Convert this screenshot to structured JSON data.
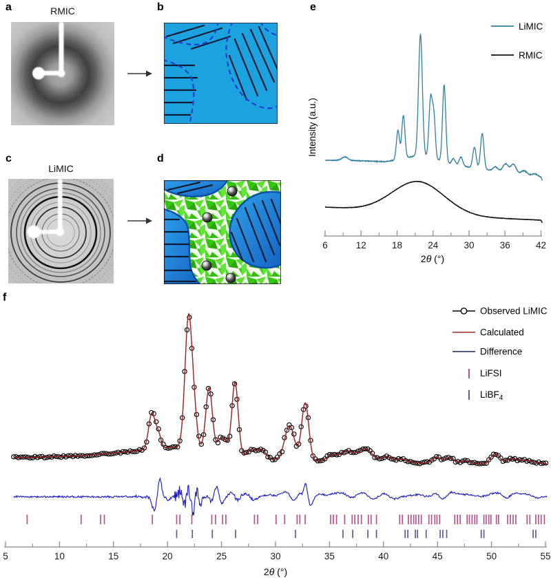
{
  "figure": {
    "panels": {
      "a": {
        "label": "a",
        "title": "RMIC"
      },
      "b": {
        "label": "b"
      },
      "c": {
        "label": "c",
        "title": "LiMIC"
      },
      "d": {
        "label": "d"
      },
      "e": {
        "label": "e"
      },
      "f": {
        "label": "f"
      }
    }
  },
  "colors": {
    "limic": "#2e7f9f",
    "rmic": "#111111",
    "observed": "#000000",
    "calculated": "#9e2424",
    "difference": "#1717c4",
    "difference_legend": "#3c4066",
    "lifsi": "#b5538f",
    "libf4": "#5c5c8f",
    "axis": "#999999",
    "matrix_blue": "#1da2e0",
    "dashed_blue": "#1f3fd0",
    "hatch_navy": "#0d1b35",
    "crystal_green": "#3ecb12",
    "region_blue_dark": "#1565c4"
  },
  "chart_data": [
    {
      "panel": "e",
      "type": "line",
      "xlabel_prefix": "2",
      "xlabel_theta": "θ",
      "xlabel_suffix": " (°)",
      "ylabel": "Intensity (a.u.)",
      "xlim": [
        6,
        42.2
      ],
      "x_major_ticks": [
        6,
        12,
        18,
        24,
        30,
        36,
        42
      ],
      "x_minor_ticks": [
        9,
        15,
        21,
        27,
        33,
        39
      ],
      "legend": [
        {
          "label": "LiMIC",
          "color": "#2e7f9f"
        },
        {
          "label": "RMIC",
          "color": "#111111"
        }
      ],
      "series": [
        {
          "name": "LiMIC",
          "color": "#2e7f9f",
          "baseline": [
            [
              6,
              233
            ],
            [
              9,
              233
            ],
            [
              13,
              234
            ],
            [
              16,
              235
            ],
            [
              17.5,
              233
            ],
            [
              19,
              230
            ],
            [
              21,
              227
            ],
            [
              23,
              229
            ],
            [
              25,
              233
            ],
            [
              27,
              239
            ],
            [
              30,
              243
            ],
            [
              33,
              247
            ],
            [
              36,
              250
            ],
            [
              39,
              254
            ],
            [
              42,
              258
            ],
            [
              42.2,
              262
            ]
          ],
          "peaks": [
            [
              9.3,
              5,
              0.5
            ],
            [
              18.15,
              42,
              0.26
            ],
            [
              19.05,
              62,
              0.26
            ],
            [
              21.9,
              178,
              0.32
            ],
            [
              23.6,
              88,
              0.28
            ],
            [
              24.15,
              58,
              0.24
            ],
            [
              25.85,
              112,
              0.27
            ],
            [
              27.4,
              9,
              0.3
            ],
            [
              28.65,
              13,
              0.3
            ],
            [
              30.9,
              30,
              0.28
            ],
            [
              32.2,
              52,
              0.28
            ],
            [
              34.4,
              6,
              0.4
            ],
            [
              36.1,
              12,
              0.45
            ],
            [
              37.4,
              13,
              0.45
            ],
            [
              39.2,
              6,
              0.5
            ],
            [
              41.0,
              4,
              0.5
            ]
          ]
        },
        {
          "name": "RMIC",
          "color": "#111111",
          "baseline": [
            [
              6,
              301
            ],
            [
              12,
              304
            ],
            [
              22,
              309
            ],
            [
              32,
              316
            ],
            [
              42,
              320
            ],
            [
              42.2,
              324
            ]
          ],
          "peaks": [
            [
              21.5,
              45,
              4.3
            ]
          ]
        }
      ]
    },
    {
      "panel": "f",
      "type": "line+scatter",
      "xlabel_prefix": "2",
      "xlabel_theta": "θ",
      "xlabel_suffix": " (°)",
      "xlim": [
        5,
        55
      ],
      "x_major_ticks": [
        5,
        10,
        15,
        20,
        25,
        30,
        35,
        40,
        45,
        50,
        55
      ],
      "x_minor_ticks": [
        7.5,
        12.5,
        17.5,
        22.5,
        27.5,
        32.5,
        37.5,
        42.5,
        47.5,
        52.5
      ],
      "legend": [
        {
          "label": "Observed LiMIC",
          "type": "line+circle",
          "color": "#000000"
        },
        {
          "label": "Calculated",
          "type": "line",
          "color": "#9e2424"
        },
        {
          "label": "Difference",
          "type": "line",
          "color": "#3c4066"
        },
        {
          "label": "LiFSI",
          "type": "tick",
          "color": "#b5538f"
        },
        {
          "label": "LiBF",
          "sub": "4",
          "type": "tick",
          "color": "#5c5c8f"
        }
      ],
      "series": {
        "observed": {
          "marker": "circle",
          "color": "#000000",
          "step": 0.22
        },
        "calculated": {
          "color": "#9e2424",
          "baseline": [
            [
              5,
              237
            ],
            [
              8,
              236.5
            ],
            [
              12,
              234.5
            ],
            [
              16,
              229
            ],
            [
              18,
              226
            ],
            [
              20,
              222.5
            ],
            [
              22,
              222
            ],
            [
              24,
              226
            ],
            [
              26,
              231
            ],
            [
              28,
              237
            ],
            [
              30,
              240
            ],
            [
              33,
              242
            ],
            [
              36,
              243
            ],
            [
              40,
              244
            ],
            [
              45,
              245.5
            ],
            [
              50,
              246.5
            ],
            [
              55,
              248
            ]
          ],
          "peaks": [
            [
              18.55,
              52,
              0.3
            ],
            [
              19.15,
              20,
              0.24
            ],
            [
              21.95,
              190,
              0.33
            ],
            [
              22.5,
              36,
              0.26
            ],
            [
              23.85,
              90,
              0.3
            ],
            [
              24.9,
              16,
              0.28
            ],
            [
              25.35,
              13,
              0.26
            ],
            [
              26.25,
              104,
              0.29
            ],
            [
              27.8,
              11,
              0.33
            ],
            [
              28.7,
              13,
              0.38
            ],
            [
              31.3,
              50,
              0.45
            ],
            [
              32.75,
              84,
              0.33
            ],
            [
              35.2,
              9,
              0.45
            ],
            [
              36.6,
              15,
              0.6
            ],
            [
              38.3,
              19,
              0.65
            ],
            [
              40.3,
              8,
              0.5
            ],
            [
              41.7,
              5,
              0.5
            ],
            [
              44.9,
              9,
              0.42
            ],
            [
              46.1,
              8,
              0.4
            ],
            [
              47.6,
              4,
              0.5
            ],
            [
              50.35,
              15,
              0.42
            ],
            [
              51.9,
              8,
              0.5
            ],
            [
              53.2,
              6,
              0.55
            ],
            [
              54.5,
              3,
              0.5
            ]
          ]
        },
        "difference": {
          "color": "#1717c4",
          "center_y": 294,
          "features": [
            [
              18.75,
              -20,
              0.18
            ],
            [
              19.3,
              26,
              0.15
            ],
            [
              20.1,
              -5,
              0.2
            ],
            [
              21.2,
              9,
              0.12
            ],
            [
              21.6,
              -11,
              0.1
            ],
            [
              21.95,
              13,
              0.1
            ],
            [
              22.35,
              -26,
              0.12
            ],
            [
              22.7,
              9,
              0.1
            ],
            [
              23.1,
              -7,
              0.12
            ],
            [
              24.05,
              -7,
              0.15
            ],
            [
              24.55,
              15,
              0.18
            ],
            [
              25.05,
              -9,
              0.2
            ],
            [
              25.9,
              5,
              0.3
            ],
            [
              26.5,
              -6,
              0.2
            ],
            [
              27.2,
              5,
              0.3
            ],
            [
              28.0,
              -4,
              0.3
            ],
            [
              29.4,
              3,
              0.4
            ],
            [
              30.6,
              4,
              0.3
            ],
            [
              31.1,
              6,
              0.25
            ],
            [
              31.7,
              -6,
              0.3
            ],
            [
              32.2,
              6,
              0.2
            ],
            [
              32.8,
              21,
              0.16
            ],
            [
              33.25,
              -13,
              0.25
            ],
            [
              34.1,
              4,
              0.4
            ],
            [
              35.3,
              4,
              0.4
            ],
            [
              36.3,
              6,
              0.5
            ],
            [
              36.9,
              -4,
              0.4
            ],
            [
              38.1,
              6,
              0.5
            ],
            [
              38.9,
              -4,
              0.4
            ],
            [
              40.2,
              5,
              0.4
            ],
            [
              40.9,
              -4,
              0.4
            ],
            [
              43.1,
              3,
              0.5
            ],
            [
              44.8,
              5,
              0.3
            ],
            [
              45.4,
              -3,
              0.3
            ],
            [
              46.3,
              6,
              0.3
            ],
            [
              47.1,
              4,
              0.4
            ],
            [
              48.1,
              3,
              0.4
            ],
            [
              50.0,
              4,
              0.4
            ],
            [
              50.7,
              5,
              0.3
            ],
            [
              51.4,
              -3,
              0.4
            ],
            [
              52.1,
              5,
              0.4
            ],
            [
              53.2,
              4,
              0.5
            ],
            [
              54.1,
              -2,
              0.4
            ]
          ],
          "noise_base": 1.3,
          "noise_extra_range": [
            17,
            28,
            1.2
          ],
          "noise_burst": [
            20.6,
            23.3,
            6.5
          ]
        },
        "bragg_ticks": [
          {
            "name": "LiFSI",
            "color": "#b5538f",
            "row_y": [
              320,
              334
            ],
            "positions": [
              7.0,
              12.0,
              13.8,
              14.15,
              18.6,
              20.85,
              21.15,
              22.25,
              24.1,
              24.45,
              25.1,
              25.4,
              28.05,
              28.35,
              30.05,
              30.85,
              32.0,
              32.25,
              32.75,
              35.1,
              35.35,
              35.65,
              36.4,
              37.1,
              37.35,
              37.65,
              37.95,
              38.6,
              38.85,
              39.35,
              41.5,
              41.75,
              42.3,
              42.55,
              42.8,
              43.0,
              43.25,
              43.5,
              44.2,
              44.45,
              44.75,
              44.95,
              45.2,
              46.6,
              46.85,
              47.1,
              47.75,
              47.95,
              48.2,
              48.45,
              48.65,
              49.3,
              49.5,
              49.75,
              49.95,
              50.45,
              50.65,
              51.5,
              51.75,
              52.0,
              52.25,
              53.3,
              53.55,
              54.1,
              54.35,
              54.6,
              54.9
            ]
          },
          {
            "name": "LiBF4",
            "color": "#5c5c8f",
            "row_y": [
              342,
              354
            ],
            "positions": [
              20.85,
              22.3,
              24.15,
              26.3,
              31.85,
              36.25,
              37.15,
              38.55,
              39.35,
              42.0,
              42.25,
              42.95,
              43.15,
              43.95,
              45.25,
              45.5,
              45.85,
              49.05,
              49.3,
              53.85,
              54.1
            ]
          }
        ]
      }
    }
  ]
}
